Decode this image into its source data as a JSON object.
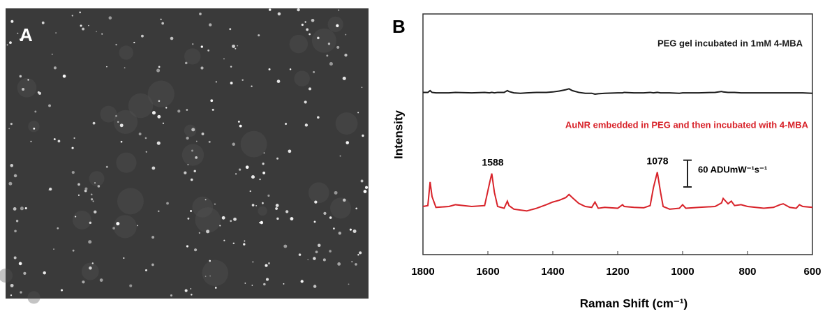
{
  "panels": {
    "a": {
      "label": "A"
    },
    "b": {
      "label": "B"
    }
  },
  "chart_data": {
    "type": "line",
    "x_label": "Raman Shift (cm⁻¹)",
    "y_label": "Intensity",
    "xlim": [
      1800,
      600
    ],
    "xticks": [
      1800,
      1600,
      1400,
      1200,
      1000,
      800,
      600
    ],
    "ylim": [
      0,
      540
    ],
    "x": [
      1800,
      1785,
      1778,
      1772,
      1760,
      1720,
      1700,
      1650,
      1610,
      1595,
      1588,
      1580,
      1570,
      1550,
      1540,
      1535,
      1520,
      1500,
      1480,
      1450,
      1420,
      1400,
      1380,
      1360,
      1350,
      1340,
      1320,
      1300,
      1280,
      1270,
      1260,
      1240,
      1200,
      1185,
      1180,
      1150,
      1120,
      1100,
      1090,
      1078,
      1068,
      1060,
      1040,
      1010,
      1000,
      990,
      950,
      900,
      880,
      875,
      860,
      850,
      840,
      820,
      800,
      750,
      720,
      700,
      690,
      670,
      650,
      640,
      630,
      600
    ],
    "series": [
      {
        "name": "PEG gel incubated in 1mM 4-MBA",
        "color": "#1a1a1a",
        "values": [
          364,
          364,
          368,
          364,
          363,
          363,
          364,
          363,
          364,
          363,
          364,
          363,
          364,
          364,
          368,
          366,
          363,
          362,
          363,
          364,
          364,
          365,
          367,
          370,
          372,
          368,
          364,
          362,
          362,
          360,
          361,
          362,
          363,
          363,
          364,
          363,
          363,
          364,
          363,
          364,
          363,
          363,
          363,
          362,
          363,
          363,
          363,
          364,
          366,
          365,
          364,
          364,
          364,
          363,
          363,
          363,
          363,
          363,
          363,
          363,
          363,
          363,
          363,
          362
        ]
      },
      {
        "name": "AuNR embedded in PEG and then incubated with 4-MBA",
        "color": "#d8232a",
        "values": [
          108,
          110,
          163,
          130,
          106,
          108,
          112,
          108,
          110,
          160,
          182,
          140,
          108,
          104,
          120,
          110,
          102,
          100,
          98,
          104,
          112,
          118,
          122,
          128,
          135,
          128,
          115,
          108,
          106,
          118,
          104,
          106,
          104,
          112,
          108,
          106,
          105,
          110,
          150,
          185,
          140,
          108,
          102,
          104,
          112,
          104,
          106,
          108,
          116,
          126,
          114,
          120,
          110,
          112,
          108,
          104,
          106,
          112,
          114,
          106,
          104,
          112,
          108,
          106
        ]
      }
    ],
    "annotations": [
      {
        "text": "1588"
      },
      {
        "text": "1078"
      }
    ],
    "scale_bar": {
      "value": 60,
      "label": "60 ADUmW⁻¹s⁻¹"
    }
  }
}
